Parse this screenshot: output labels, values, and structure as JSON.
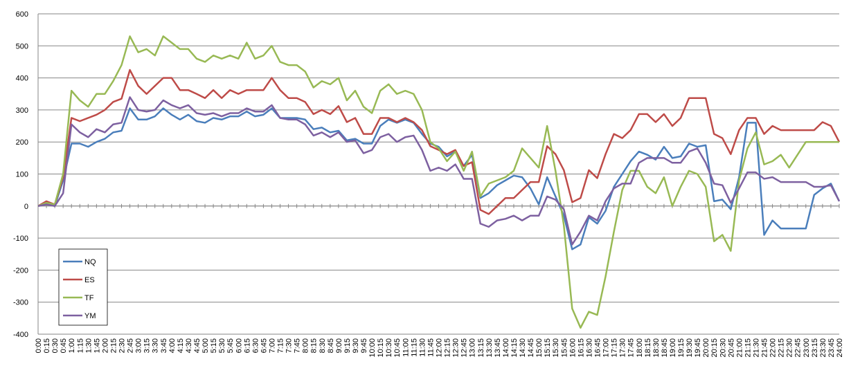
{
  "chart_data": {
    "type": "line",
    "categories": [
      "0:00",
      "0:15",
      "0:30",
      "0:45",
      "1:00",
      "1:15",
      "1:30",
      "1:45",
      "2:00",
      "2:15",
      "2:30",
      "2:45",
      "3:00",
      "3:15",
      "3:30",
      "3:45",
      "4:00",
      "4:15",
      "4:30",
      "4:45",
      "5:00",
      "5:15",
      "5:30",
      "5:45",
      "6:00",
      "6:15",
      "6:30",
      "6:45",
      "7:00",
      "7:15",
      "7:30",
      "7:45",
      "8:00",
      "8:15",
      "8:30",
      "8:45",
      "9:00",
      "9:15",
      "9:30",
      "9:45",
      "10:00",
      "10:15",
      "10:30",
      "10:45",
      "11:00",
      "11:15",
      "11:30",
      "11:45",
      "12:00",
      "12:15",
      "12:30",
      "12:45",
      "13:00",
      "13:15",
      "13:30",
      "13:45",
      "14:00",
      "14:15",
      "14:30",
      "14:45",
      "15:00",
      "15:15",
      "15:30",
      "15:45",
      "16:00",
      "16:15",
      "16:30",
      "16:45",
      "17:00",
      "17:15",
      "17:30",
      "17:45",
      "18:00",
      "18:15",
      "18:30",
      "18:45",
      "19:00",
      "19:15",
      "19:30",
      "19:45",
      "20:00",
      "20:15",
      "20:30",
      "20:45",
      "21:00",
      "21:15",
      "21:30",
      "21:45",
      "22:00",
      "22:15",
      "22:30",
      "22:45",
      "23:00",
      "23:15",
      "23:30",
      "23:45",
      "24:00"
    ],
    "series": [
      {
        "name": "NQ",
        "color": "#4a7ebb",
        "values": [
          0,
          10,
          0,
          80,
          195,
          195,
          185,
          200,
          210,
          230,
          235,
          305,
          270,
          270,
          280,
          305,
          285,
          270,
          285,
          265,
          260,
          275,
          270,
          280,
          280,
          295,
          280,
          285,
          305,
          275,
          275,
          275,
          270,
          240,
          245,
          230,
          235,
          205,
          210,
          195,
          195,
          250,
          270,
          260,
          270,
          260,
          225,
          195,
          185,
          155,
          170,
          125,
          160,
          25,
          40,
          65,
          80,
          95,
          90,
          55,
          5,
          90,
          30,
          -30,
          -135,
          -120,
          -35,
          -55,
          -15,
          60,
          100,
          140,
          170,
          160,
          145,
          185,
          150,
          155,
          195,
          185,
          190,
          15,
          20,
          -10,
          90,
          260,
          260,
          -90,
          -45,
          -70,
          -70,
          -70,
          -70,
          35,
          55,
          70,
          15
        ]
      },
      {
        "name": "ES",
        "color": "#be4b48",
        "values": [
          0,
          15,
          5,
          90,
          275,
          265,
          275,
          285,
          300,
          325,
          335,
          425,
          375,
          350,
          375,
          400,
          400,
          362,
          362,
          350,
          337,
          362,
          337,
          362,
          350,
          362,
          362,
          362,
          400,
          362,
          337,
          337,
          325,
          287,
          300,
          287,
          312,
          262,
          275,
          225,
          225,
          275,
          275,
          262,
          275,
          262,
          237,
          187,
          175,
          162,
          175,
          125,
          137,
          -12,
          -25,
          0,
          25,
          25,
          50,
          75,
          75,
          187,
          162,
          112,
          12,
          25,
          112,
          87,
          162,
          225,
          212,
          237,
          287,
          287,
          262,
          287,
          250,
          275,
          337,
          337,
          337,
          225,
          212,
          162,
          237,
          275,
          275,
          225,
          250,
          237,
          237,
          237,
          237,
          237,
          262,
          250,
          200
        ]
      },
      {
        "name": "TF",
        "color": "#98b954",
        "values": [
          0,
          10,
          5,
          100,
          360,
          330,
          310,
          350,
          350,
          390,
          440,
          530,
          480,
          490,
          470,
          530,
          510,
          490,
          490,
          460,
          450,
          470,
          460,
          470,
          460,
          510,
          460,
          470,
          500,
          450,
          440,
          440,
          420,
          370,
          390,
          380,
          400,
          330,
          360,
          310,
          290,
          360,
          380,
          350,
          360,
          350,
          300,
          200,
          180,
          140,
          170,
          110,
          170,
          30,
          70,
          80,
          90,
          110,
          180,
          150,
          120,
          250,
          110,
          -60,
          -320,
          -380,
          -330,
          -340,
          -220,
          -80,
          50,
          110,
          110,
          60,
          40,
          90,
          0,
          60,
          110,
          100,
          60,
          -110,
          -90,
          -140,
          80,
          180,
          230,
          130,
          140,
          160,
          120,
          160,
          200,
          200,
          200,
          200,
          200
        ]
      },
      {
        "name": "YM",
        "color": "#7d60a0",
        "values": [
          0,
          5,
          0,
          40,
          255,
          230,
          215,
          240,
          230,
          255,
          260,
          340,
          300,
          295,
          300,
          330,
          315,
          305,
          315,
          290,
          285,
          290,
          280,
          290,
          290,
          305,
          295,
          295,
          315,
          275,
          270,
          270,
          255,
          220,
          230,
          215,
          230,
          200,
          205,
          165,
          175,
          215,
          225,
          200,
          215,
          220,
          175,
          110,
          120,
          110,
          130,
          85,
          85,
          -55,
          -65,
          -45,
          -40,
          -30,
          -45,
          -30,
          -30,
          30,
          20,
          -10,
          -120,
          -80,
          -30,
          -45,
          15,
          55,
          70,
          70,
          135,
          150,
          150,
          150,
          135,
          135,
          170,
          180,
          135,
          70,
          65,
          10,
          55,
          105,
          105,
          85,
          90,
          75,
          75,
          75,
          75,
          60,
          60,
          65,
          15
        ]
      }
    ],
    "ylim": [
      -400,
      600
    ],
    "yticks": [
      -400,
      -300,
      -200,
      -100,
      0,
      100,
      200,
      300,
      400,
      500,
      600
    ],
    "grid": true,
    "legend": "left"
  }
}
